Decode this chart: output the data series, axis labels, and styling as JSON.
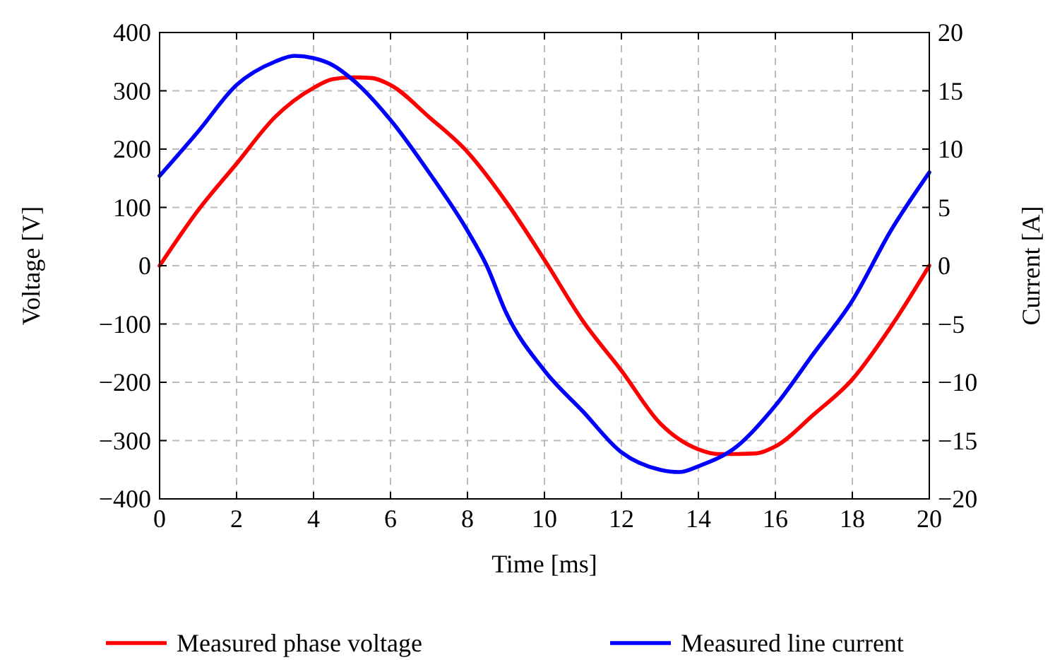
{
  "chart_data": {
    "type": "line",
    "xlabel": "Time [ms]",
    "ylabel": "Voltage [V]",
    "y2label": "Current [A]",
    "xlim": [
      0,
      20
    ],
    "xticks": [
      0,
      2,
      4,
      6,
      8,
      10,
      12,
      14,
      16,
      18,
      20
    ],
    "ylim": [
      -400,
      400
    ],
    "yticks": [
      {
        "value": -400,
        "label": "−400"
      },
      {
        "value": -300,
        "label": "−300"
      },
      {
        "value": -200,
        "label": "−200"
      },
      {
        "value": -100,
        "label": "−100"
      },
      0,
      100,
      200,
      300,
      400
    ],
    "y2lim": [
      -20,
      20
    ],
    "y2ticks": [
      {
        "value": -20,
        "label": "−20"
      },
      {
        "value": -15,
        "label": "−15"
      },
      {
        "value": -10,
        "label": "−10"
      },
      {
        "value": -5,
        "label": "−5"
      },
      0,
      5,
      10,
      15,
      20
    ],
    "grid": true,
    "legend": "bottom",
    "line_style": "solid",
    "series": [
      {
        "name": "Measured phase voltage",
        "color": "#ff0000",
        "x": [
          0,
          1,
          2,
          3,
          4,
          4.5,
          5,
          5.5,
          6,
          7,
          8,
          9,
          10,
          11,
          12,
          13,
          14,
          14.5,
          15,
          15.5,
          16,
          17,
          18,
          19,
          20
        ],
        "values": [
          0,
          95,
          175,
          255,
          305,
          320,
          323,
          322,
          310,
          255,
          195,
          110,
          10,
          -95,
          -180,
          -270,
          -315,
          -323,
          -323,
          -322,
          -310,
          -255,
          -195,
          -105,
          0
        ]
      },
      {
        "name": "Measured line current",
        "color": "#0000ff",
        "axis": "y2",
        "x": [
          0,
          1,
          2,
          3,
          3.5,
          4,
          4.5,
          5,
          6,
          7,
          8,
          8.5,
          9,
          10,
          11,
          12,
          13,
          13.5,
          14,
          15,
          16,
          17,
          18,
          19,
          20
        ],
        "values": [
          7.7,
          11.5,
          15.5,
          17.5,
          18,
          17.8,
          17.2,
          16,
          12.5,
          8,
          3,
          0,
          -4,
          -9,
          -12.5,
          -16,
          -17.5,
          -17.7,
          -17.2,
          -15.5,
          -12,
          -7.5,
          -3,
          3,
          8
        ]
      }
    ]
  }
}
